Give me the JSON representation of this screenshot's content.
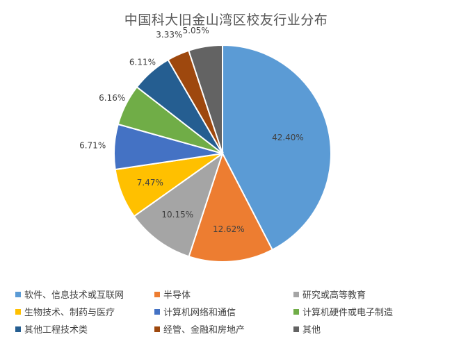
{
  "chart_data": {
    "type": "pie",
    "title": "中国科大旧金山湾区校友行业分布",
    "legend_position": "bottom",
    "categories": [
      "软件、信息技术或互联网",
      "半导体",
      "研究或高等教育",
      "生物技术、制药与医疗",
      "计算机网络和通信",
      "计算机硬件或电子制造",
      "其他工程技术类",
      "经管、金融和房地产",
      "其他"
    ],
    "values": [
      42.4,
      12.62,
      10.15,
      7.47,
      6.71,
      6.16,
      6.11,
      3.33,
      5.05
    ],
    "labels": [
      "42.40%",
      "12.62%",
      "10.15%",
      "7.47%",
      "6.71%",
      "6.16%",
      "6.11%",
      "3.33%",
      "5.05%"
    ],
    "colors": [
      "#5B9BD5",
      "#ED7D31",
      "#A5A5A5",
      "#FFC000",
      "#4472C4",
      "#70AD47",
      "#255E91",
      "#9E480E",
      "#636363"
    ]
  }
}
